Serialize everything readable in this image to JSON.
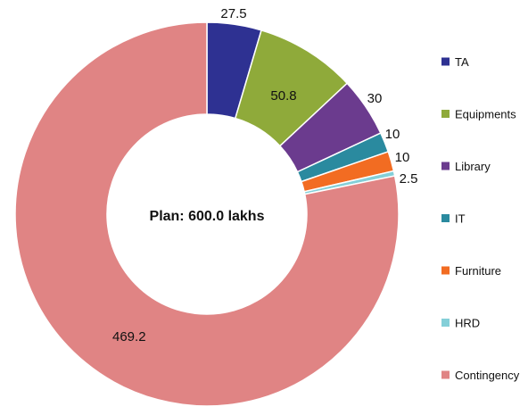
{
  "chart_data": {
    "type": "pie",
    "donut": true,
    "center_label": "Plan: 600.0 lakhs",
    "categories": [
      "TA",
      "Equipments",
      "Library",
      "IT",
      "Furniture",
      "HRD",
      "Contingency"
    ],
    "values": [
      27.5,
      50.8,
      30,
      10,
      10,
      2.5,
      469.2
    ],
    "value_labels": [
      "27.5",
      "50.8",
      "30",
      "10",
      "10",
      "2.5",
      "469.2"
    ],
    "colors": [
      "#2e3192",
      "#8faa3a",
      "#6b3b8e",
      "#2a8a9f",
      "#f26c22",
      "#84cfd8",
      "#e08484"
    ],
    "legend_position": "right"
  }
}
